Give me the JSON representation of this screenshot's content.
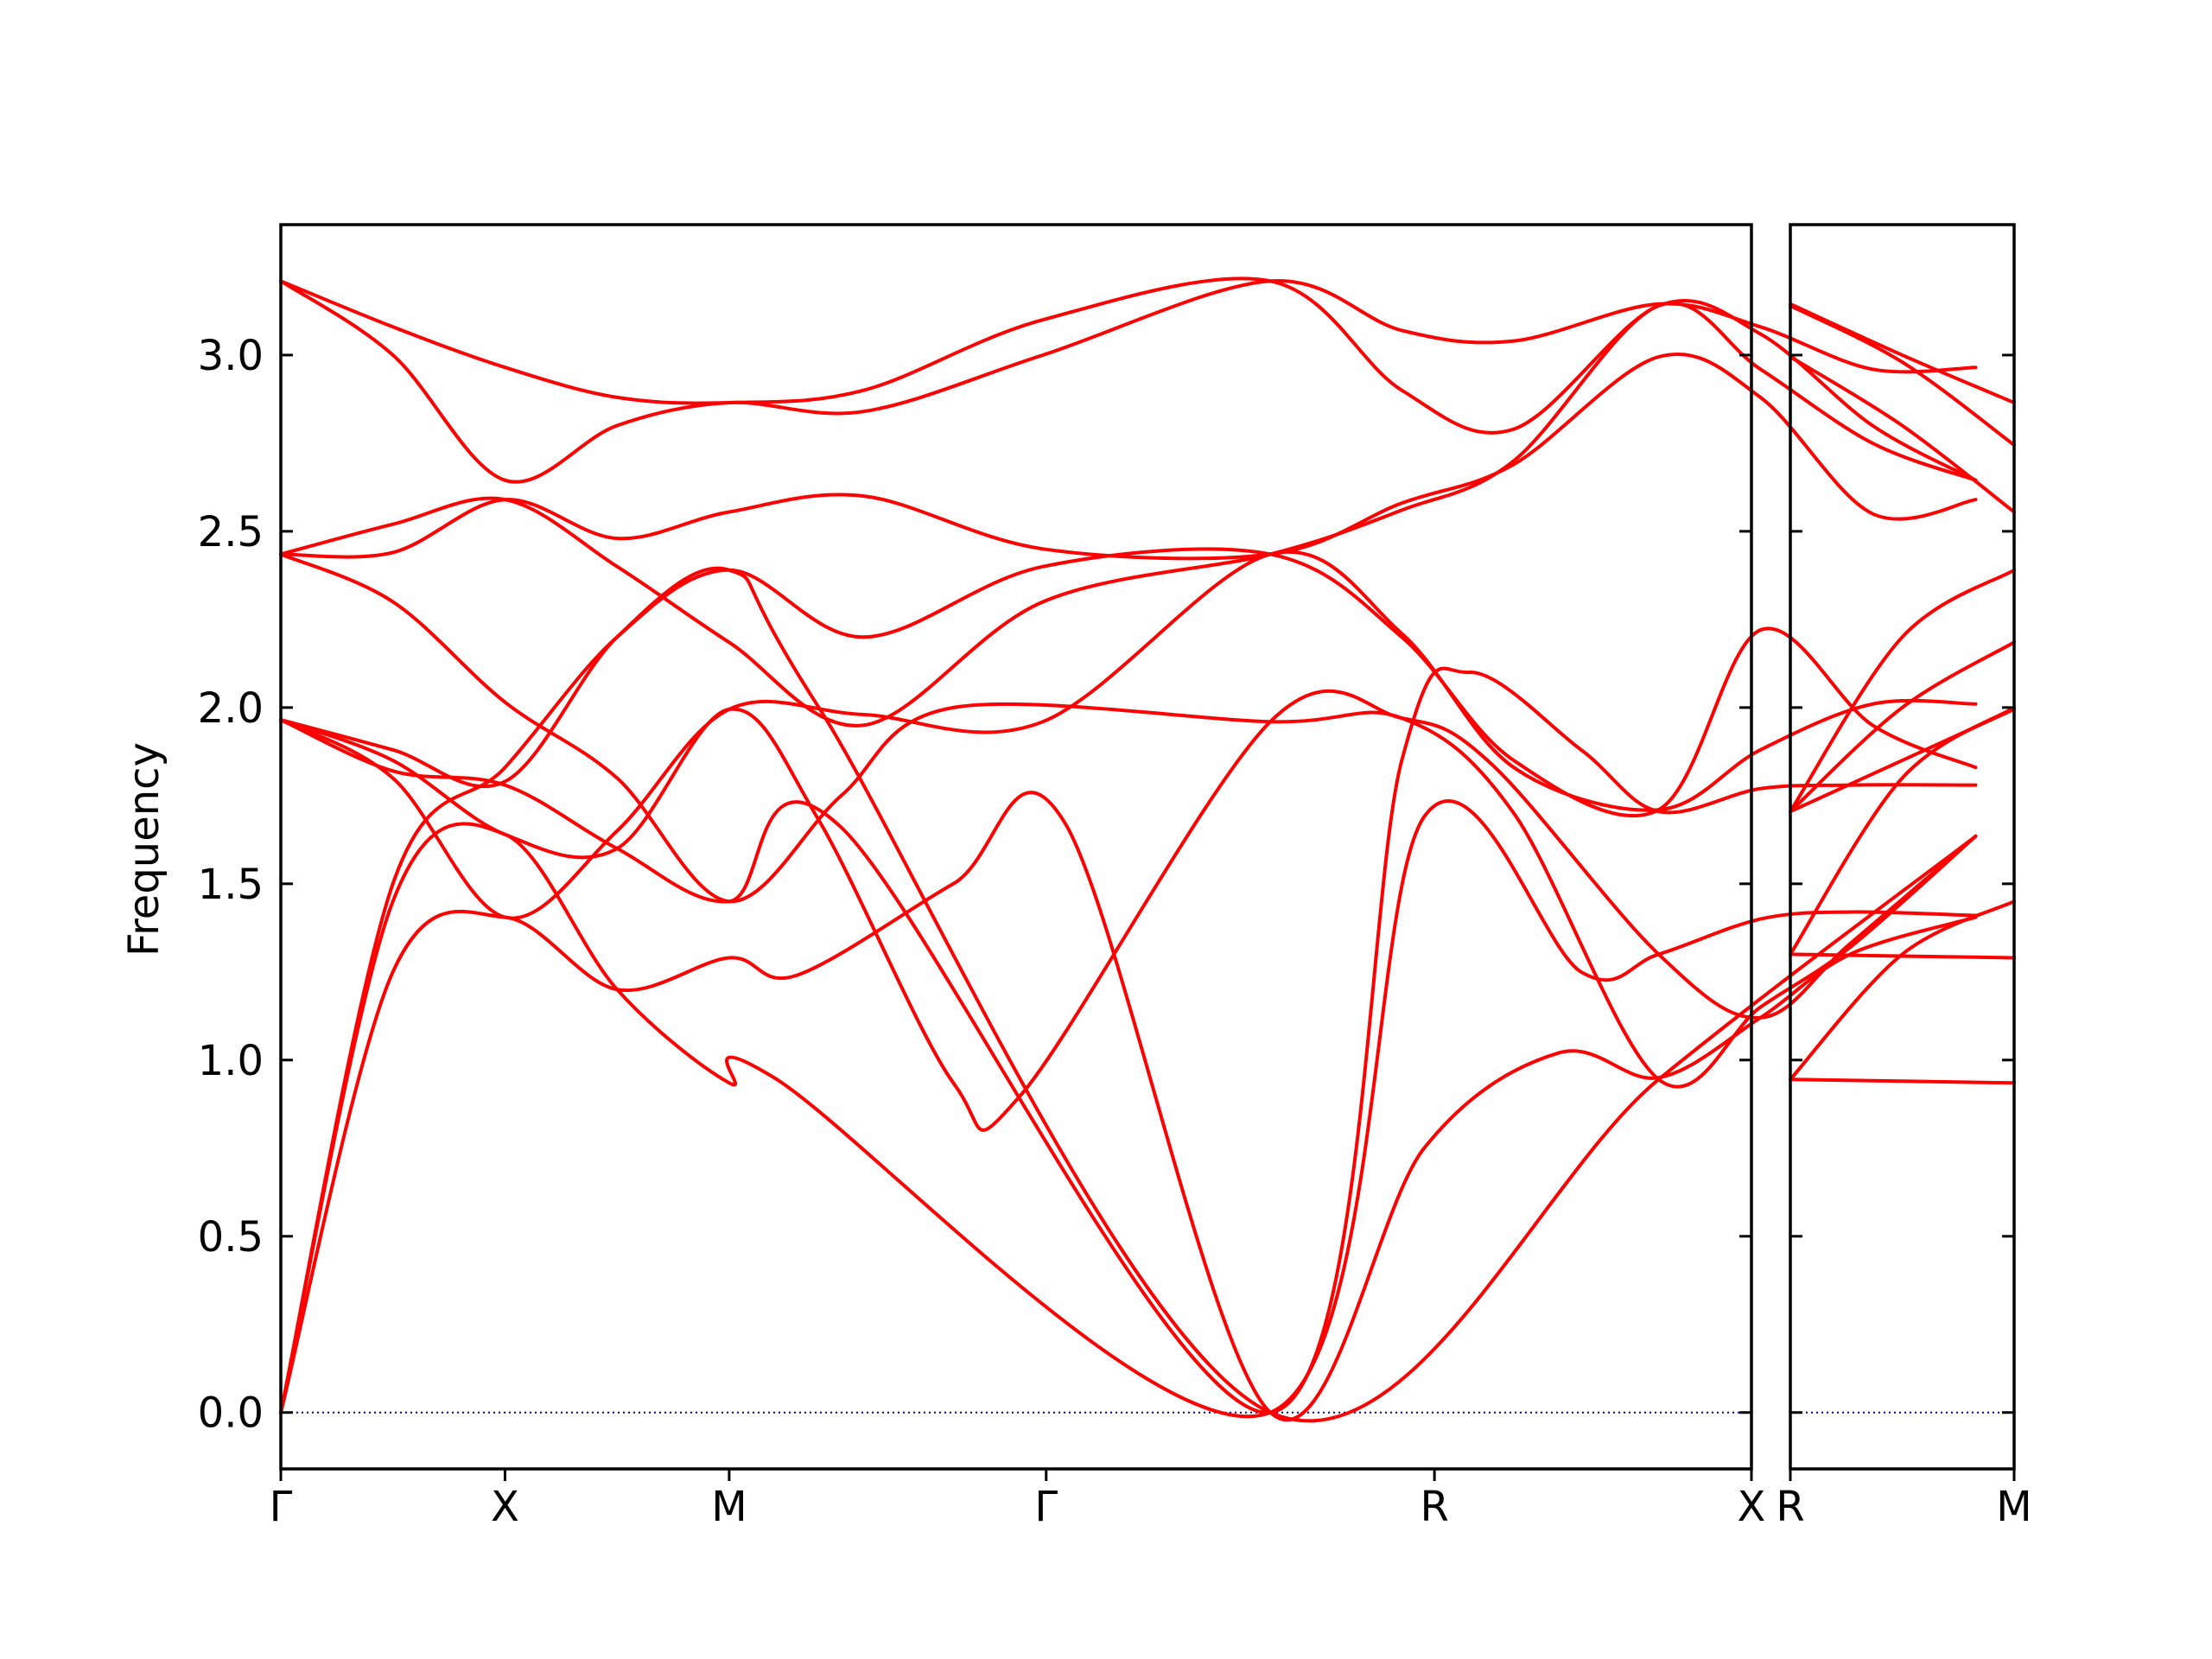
{
  "chart_data": {
    "type": "line",
    "title": "",
    "ylabel": "Frequency",
    "ylim": [
      -0.16,
      3.37
    ],
    "yticks": [
      0.0,
      0.5,
      1.0,
      1.5,
      2.0,
      2.5,
      3.0
    ],
    "ytick_labels": [
      "0.0",
      "0.5",
      "1.0",
      "1.5",
      "2.0",
      "2.5",
      "3.0"
    ],
    "band_color": "#ff0000",
    "zero_line_color": "#0000aa",
    "panels": [
      {
        "name": "main",
        "path_labels": [
          "Γ",
          "X",
          "M",
          "Γ",
          "R",
          "X"
        ],
        "segment_lengths": [
          1,
          1,
          1.414,
          1.732,
          1.414
        ],
        "bands": [
          [
            [
              0,
              0
            ],
            [
              0.5,
              1.25
            ],
            [
              1,
              1.405
            ],
            [
              1.5,
              1.2
            ],
            [
              2,
              1.29
            ],
            [
              2.3,
              1.24
            ],
            [
              3,
              1.5
            ],
            [
              3.5,
              1.67
            ],
            [
              4.414,
              0.0
            ],
            [
              5.1,
              0.75
            ],
            [
              5.7,
              1.02
            ],
            [
              6.146,
              0.95
            ],
            [
              6.6,
              1.12
            ],
            [
              7,
              1.3
            ],
            [
              7.56,
              1.405
            ]
          ],
          [
            [
              0,
              0
            ],
            [
              0.5,
              1.45
            ],
            [
              1,
              1.64
            ],
            [
              1.5,
              1.2
            ],
            [
              2,
              0.935
            ],
            [
              2.2,
              0.95
            ],
            [
              4.414,
              0.0
            ],
            [
              5.1,
              1.69
            ],
            [
              5.8,
              1.25
            ],
            [
              6.146,
              1.3
            ],
            [
              6.6,
              1.4
            ],
            [
              7,
              1.42
            ],
            [
              7.56,
              1.41
            ]
          ],
          [
            [
              0,
              1.965
            ],
            [
              0.5,
              1.82
            ],
            [
              1,
              1.78
            ],
            [
              1.5,
              1.6
            ],
            [
              2,
              1.45
            ],
            [
              2.5,
              1.66
            ],
            [
              4.414,
              0.0
            ],
            [
              5.0,
              1.85
            ],
            [
              5.3,
              2.1
            ],
            [
              5.8,
              1.88
            ],
            [
              6.146,
              1.705
            ],
            [
              6.6,
              1.77
            ],
            [
              7,
              1.78
            ],
            [
              7.56,
              1.78
            ]
          ],
          [
            [
              0,
              1.965
            ],
            [
              0.5,
              1.85
            ],
            [
              1,
              1.64
            ],
            [
              1.5,
              1.6
            ],
            [
              2,
              1.995
            ],
            [
              2.4,
              1.68
            ],
            [
              3,
              0.935
            ],
            [
              3.3,
              0.9
            ],
            [
              4.414,
              1.96
            ],
            [
              5.0,
              1.97
            ],
            [
              5.4,
              1.84
            ],
            [
              6.146,
              1.3
            ],
            [
              6.6,
              1.12
            ],
            [
              7,
              1.33
            ],
            [
              7.56,
              1.635
            ]
          ],
          [
            [
              0,
              2.435
            ],
            [
              0.5,
              2.3
            ],
            [
              1,
              2.015
            ],
            [
              1.5,
              1.8
            ],
            [
              2,
              1.45
            ],
            [
              2.5,
              1.75
            ],
            [
              3,
              2.0
            ],
            [
              4.414,
              1.96
            ],
            [
              5.0,
              1.97
            ],
            [
              5.5,
              1.7
            ],
            [
              6.146,
              0.945
            ],
            [
              6.6,
              1.15
            ],
            [
              7,
              1.32
            ],
            [
              7.56,
              1.635
            ]
          ],
          [
            [
              0,
              2.435
            ],
            [
              0.5,
              2.44
            ],
            [
              1,
              2.59
            ],
            [
              1.5,
              2.48
            ],
            [
              2,
              2.555
            ],
            [
              2.6,
              2.6
            ],
            [
              3.4,
              2.45
            ],
            [
              4.414,
              2.435
            ],
            [
              5.0,
              2.58
            ],
            [
              5.5,
              2.69
            ],
            [
              6.146,
              2.995
            ],
            [
              6.6,
              2.88
            ],
            [
              7.1,
              2.55
            ],
            [
              7.56,
              2.59
            ]
          ],
          [
            [
              0,
              3.21
            ],
            [
              0.5,
              3.08
            ],
            [
              1,
              2.965
            ],
            [
              1.5,
              2.88
            ],
            [
              2,
              2.865
            ],
            [
              2.6,
              2.9
            ],
            [
              3.4,
              3.1
            ],
            [
              4.414,
              3.21
            ],
            [
              5.0,
              2.9
            ],
            [
              5.5,
              2.79
            ],
            [
              6.146,
              3.14
            ],
            [
              6.6,
              3.06
            ],
            [
              7.1,
              2.8
            ],
            [
              7.56,
              2.645
            ]
          ],
          [
            [
              0,
              3.21
            ],
            [
              0.5,
              3.0
            ],
            [
              1,
              2.645
            ],
            [
              1.5,
              2.8
            ],
            [
              2,
              2.865
            ],
            [
              2.6,
              2.84
            ],
            [
              3.4,
              3.0
            ],
            [
              4.414,
              3.21
            ],
            [
              5.0,
              3.07
            ],
            [
              5.5,
              3.04
            ],
            [
              6.146,
              3.145
            ],
            [
              6.6,
              3.08
            ],
            [
              7.1,
              2.96
            ],
            [
              7.56,
              2.965
            ]
          ],
          [
            [
              0,
              1.965
            ],
            [
              0.5,
              1.8
            ],
            [
              1,
              1.405
            ],
            [
              1.5,
              1.65
            ],
            [
              2,
              1.995
            ],
            [
              2.6,
              1.98
            ],
            [
              3.4,
              1.96
            ],
            [
              4.414,
              2.435
            ],
            [
              5.0,
              2.21
            ],
            [
              5.5,
              1.83
            ],
            [
              6.146,
              1.71
            ],
            [
              6.6,
              1.88
            ],
            [
              7.1,
              2.01
            ],
            [
              7.56,
              2.01
            ]
          ],
          [
            [
              0,
              0
            ],
            [
              0.5,
              1.5
            ],
            [
              1,
              1.83
            ],
            [
              1.5,
              2.2
            ],
            [
              2,
              2.39
            ],
            [
              2.6,
              2.2
            ],
            [
              3.4,
              2.4
            ],
            [
              4.414,
              2.435
            ],
            [
              5.0,
              2.2
            ],
            [
              5.5,
              1.85
            ],
            [
              6.146,
              1.71
            ],
            [
              6.6,
              2.22
            ],
            [
              7.1,
              1.95
            ],
            [
              7.56,
              1.83
            ]
          ],
          [
            [
              0,
              1.965
            ],
            [
              0.5,
              1.88
            ],
            [
              1,
              1.79
            ],
            [
              1.5,
              2.2
            ],
            [
              2,
              2.39
            ],
            [
              2.4,
              2.0
            ],
            [
              4.414,
              0.0
            ],
            [
              6.146,
              0.945
            ],
            [
              7.56,
              1.635
            ]
          ],
          [
            [
              0,
              2.435
            ],
            [
              0.5,
              2.52
            ],
            [
              1,
              2.59
            ],
            [
              1.5,
              2.4
            ],
            [
              2,
              2.185
            ],
            [
              2.6,
              1.95
            ],
            [
              3.4,
              2.3
            ],
            [
              4.414,
              2.435
            ],
            [
              5.0,
              2.56
            ],
            [
              5.5,
              2.7
            ],
            [
              6.146,
              3.14
            ],
            [
              6.6,
              2.96
            ],
            [
              7.1,
              2.75
            ],
            [
              7.56,
              2.645
            ]
          ]
        ]
      },
      {
        "name": "branch",
        "path_labels": [
          "R",
          "M"
        ],
        "segment_lengths": [
          1
        ],
        "bands": [
          [
            [
              0,
              0.945
            ],
            [
              0.5,
              0.94
            ],
            [
              1,
              0.935
            ]
          ],
          [
            [
              0,
              1.3
            ],
            [
              0.5,
              1.295
            ],
            [
              1,
              1.29
            ]
          ],
          [
            [
              0,
              0.945
            ],
            [
              0.5,
              1.3
            ],
            [
              1,
              1.45
            ]
          ],
          [
            [
              0,
              1.3
            ],
            [
              0.5,
              1.8
            ],
            [
              1,
              2.0
            ]
          ],
          [
            [
              0,
              1.705
            ],
            [
              0.5,
              1.85
            ],
            [
              1,
              1.995
            ]
          ],
          [
            [
              0,
              1.705
            ],
            [
              0.5,
              2.0
            ],
            [
              1,
              2.185
            ]
          ],
          [
            [
              0,
              1.705
            ],
            [
              0.5,
              2.2
            ],
            [
              1,
              2.39
            ]
          ],
          [
            [
              0,
              2.995
            ],
            [
              0.5,
              2.8
            ],
            [
              1,
              2.555
            ]
          ],
          [
            [
              0,
              3.14
            ],
            [
              0.5,
              2.98
            ],
            [
              1,
              2.745
            ]
          ],
          [
            [
              0,
              3.145
            ],
            [
              0.5,
              3.0
            ],
            [
              1,
              2.865
            ]
          ]
        ]
      }
    ]
  }
}
